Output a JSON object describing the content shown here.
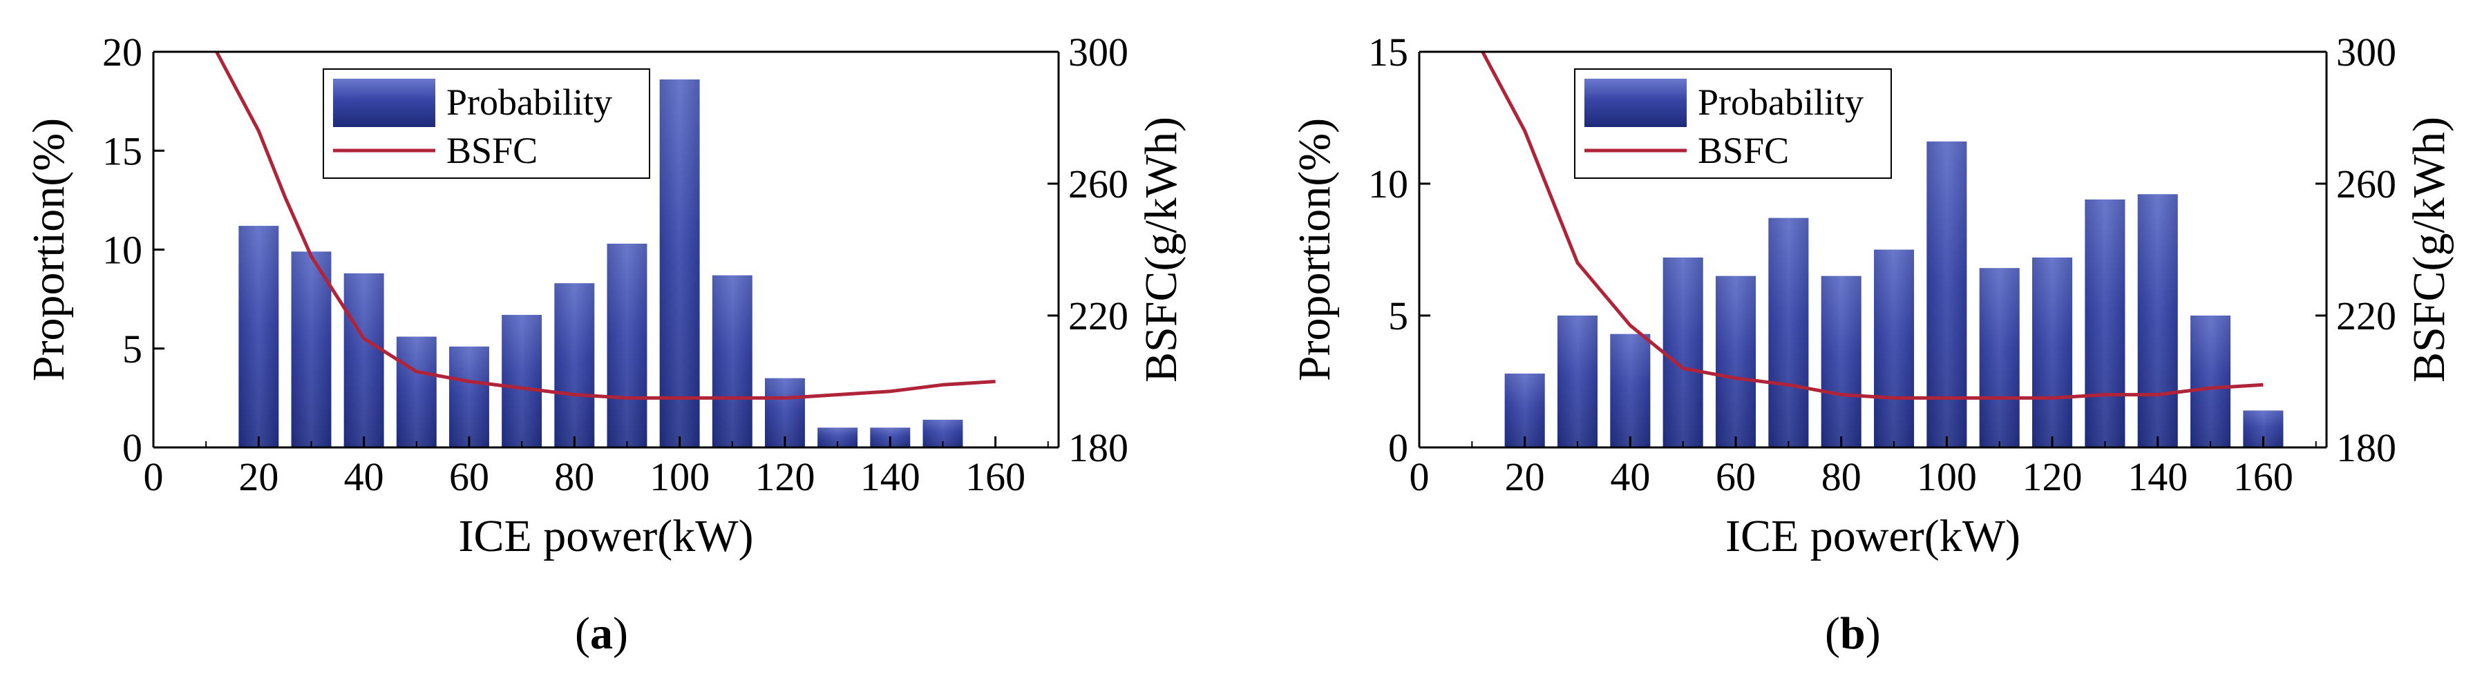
{
  "chart_data": [
    {
      "type": "bar",
      "panel_label": "a",
      "x": [
        20,
        30,
        40,
        50,
        60,
        70,
        80,
        90,
        100,
        110,
        120,
        130,
        140,
        150
      ],
      "series": [
        {
          "name": "Probability",
          "type": "bar",
          "axis": "left",
          "values": [
            11.2,
            9.9,
            8.8,
            5.6,
            5.1,
            6.7,
            8.3,
            10.3,
            18.6,
            8.7,
            3.5,
            1.0,
            1.0,
            1.4
          ]
        }
      ],
      "line_series": {
        "name": "BSFC",
        "type": "line",
        "axis": "right",
        "x": [
          12,
          20,
          25,
          30,
          40,
          50,
          60,
          70,
          80,
          90,
          100,
          110,
          120,
          130,
          140,
          150,
          160
        ],
        "y": [
          300,
          276,
          256,
          238,
          213,
          203,
          200,
          198,
          196,
          195,
          195,
          195,
          195,
          196,
          197,
          199,
          200
        ]
      },
      "xlabel": "ICE power(kW)",
      "ylabel": "Proportion(%)",
      "y2label": "BSFC(g/kWh)",
      "xlim": [
        0,
        172
      ],
      "ylim": [
        0,
        20
      ],
      "y2lim": [
        180,
        300
      ],
      "xticks": [
        "0",
        "20",
        "40",
        "60",
        "80",
        "100",
        "120",
        "140",
        "160"
      ],
      "yticks": [
        "0",
        "5",
        "10",
        "15",
        "20"
      ],
      "y2ticks": [
        "180",
        "220",
        "260",
        "300"
      ],
      "legend": [
        "Probability",
        "BSFC"
      ],
      "legend_position": "top-center"
    },
    {
      "type": "bar",
      "panel_label": "b",
      "x": [
        20,
        30,
        40,
        50,
        60,
        70,
        80,
        90,
        100,
        110,
        120,
        130,
        140,
        150,
        160
      ],
      "series": [
        {
          "name": "Probability",
          "type": "bar",
          "axis": "left",
          "values": [
            2.8,
            5.0,
            4.3,
            7.2,
            6.5,
            8.7,
            6.5,
            7.5,
            11.6,
            6.8,
            7.2,
            9.4,
            9.6,
            5.0,
            1.4
          ]
        }
      ],
      "line_series": {
        "name": "BSFC",
        "type": "line",
        "axis": "right",
        "x": [
          12,
          20,
          25,
          30,
          40,
          50,
          60,
          70,
          80,
          90,
          100,
          110,
          120,
          130,
          140,
          150,
          160
        ],
        "y": [
          300,
          276,
          256,
          236,
          217,
          204,
          201,
          199,
          196,
          195,
          195,
          195,
          195,
          196,
          196,
          198,
          199
        ]
      },
      "xlabel": "ICE power(kW)",
      "ylabel": "Proportion(%)",
      "y2label": "BSFC(g/kWh)",
      "xlim": [
        0,
        172
      ],
      "ylim": [
        0,
        15
      ],
      "y2lim": [
        180,
        300
      ],
      "xticks": [
        "0",
        "20",
        "40",
        "60",
        "80",
        "100",
        "120",
        "140",
        "160"
      ],
      "yticks": [
        "0",
        "5",
        "10",
        "15"
      ],
      "y2ticks": [
        "180",
        "220",
        "260",
        "300"
      ],
      "legend": [
        "Probability",
        "BSFC"
      ],
      "legend_position": "top-center"
    }
  ],
  "colors": {
    "bar_top": "#6a78cc",
    "bar_mid": "#3845a6",
    "bar_bottom": "#1e2a78",
    "line": "#b0243a",
    "axis": "#000000"
  },
  "captions": [
    {
      "open": "(",
      "letter": "a",
      "close": ")"
    },
    {
      "open": "(",
      "letter": "b",
      "close": ")"
    }
  ]
}
